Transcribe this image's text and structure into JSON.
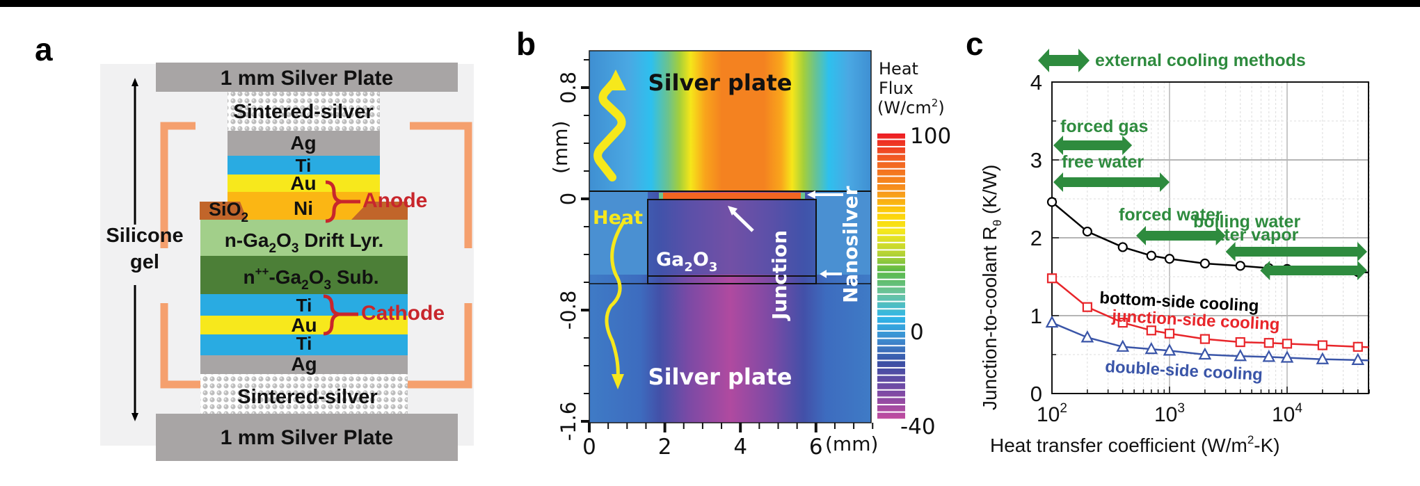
{
  "panels": {
    "a": {
      "label": "a",
      "layers": {
        "top_plate": "1 mm Silver Plate",
        "top_sinter": "Sintered-silver",
        "ag_top": "Ag",
        "ti_top": "Ti",
        "au_top": "Au",
        "ni": "Ni",
        "sio2": "SiO",
        "sio2_sub": "2",
        "drift_pre": "n-Ga",
        "drift_sub1": "2",
        "drift_mid": "O",
        "drift_sub2": "3",
        "drift_post": " Drift Lyr.",
        "sub_pre": "n",
        "sub_sup": "++",
        "sub_mid": "-Ga",
        "sub_sub1": "2",
        "sub_mid2": "O",
        "sub_sub2": "3",
        "sub_post": " Sub.",
        "ti_bot1": "Ti",
        "au_bot": "Au",
        "ti_bot2": "Ti",
        "ag_bot": "Ag",
        "bot_sinter": "Sintered-silver",
        "bot_plate": "1 mm Silver Plate"
      },
      "anode_label": "Anode",
      "cathode_label": "Cathode",
      "silicone_label_1": "Silicone",
      "silicone_label_2": "gel",
      "colors": {
        "silver": "#a8a5a5",
        "ti": "#29abe2",
        "au": "#f7e81c",
        "ni": "#fbb614",
        "sio2": "#c1652a",
        "drift": "#a2cf8a",
        "substrate": "#4c7f37",
        "bracket": "#f5a06e",
        "electrode_label": "#c8262c",
        "gel_bg": "#f1f1f2"
      }
    },
    "b": {
      "label": "b",
      "y_axis_label": "(mm)",
      "y_ticks": [
        "0.8",
        "0",
        "-0.8",
        "-1.6"
      ],
      "x_ticks": [
        "0",
        "2",
        "4",
        "6"
      ],
      "x_unit": "(mm)",
      "top_region_label": "Silver plate",
      "bottom_region_label": "Silver plate",
      "heat_label": "Heat",
      "ga2o3_pre": "Ga",
      "ga2o3_sub1": "2",
      "ga2o3_mid": "O",
      "ga2o3_sub2": "3",
      "junction_label": "Junction",
      "nanosilver_label": "Nanosilver",
      "colorbar": {
        "title_1": "Heat",
        "title_2": "Flux",
        "title_3": "(W/cm",
        "title_sup": "2",
        "title_4": ")",
        "max_label": "100",
        "zero_label": "0",
        "min_label": "-40",
        "min": -40,
        "max": 100
      }
    },
    "c": {
      "label": "c",
      "legend_header": "external cooling methods",
      "cooling_methods": [
        {
          "label": "forced gas",
          "range": [
            100,
            480
          ]
        },
        {
          "label": "free water",
          "range": [
            100,
            1000
          ]
        },
        {
          "label": "forced water",
          "range": [
            520,
            3000
          ]
        },
        {
          "label": "boiling water",
          "range": [
            3000,
            50000
          ]
        },
        {
          "label": "water vapor",
          "range": [
            5900,
            50000
          ]
        }
      ],
      "series_labels": {
        "bottom": "bottom-side cooling",
        "junction": "junction-side cooling",
        "double": "double-side cooling"
      },
      "y_label_main": "Junction-to-coolant R",
      "y_label_sub": "θ",
      "y_label_unit": " (K/W)",
      "x_label_main": "Heat transfer coefficient (W/m",
      "x_label_sup": "2",
      "x_label_end": "-K)",
      "y_ticks": [
        "0",
        "1",
        "2",
        "3",
        "4"
      ],
      "x_ticks": [
        {
          "base": "10",
          "exp": "2"
        },
        {
          "base": "10",
          "exp": "3"
        },
        {
          "base": "10",
          "exp": "4"
        }
      ],
      "colors": {
        "green": "#2e8b3e",
        "bottom": "#000000",
        "junction": "#e8252a",
        "double": "#3a55a8"
      }
    }
  },
  "chart_data": [
    {
      "type": "heatmap",
      "title": "Heat Flux (W/cm2)",
      "xlabel": "(mm)",
      "ylabel": "(mm)",
      "xlim": [
        0,
        7.5
      ],
      "ylim": [
        -1.6,
        1.07
      ],
      "x_ticks": [
        0,
        2,
        4,
        6
      ],
      "y_ticks": [
        0.8,
        0,
        -0.8,
        -1.6
      ],
      "colorbar_range": [
        -40,
        100
      ],
      "colorbar_ticks": [
        100,
        0,
        -40
      ],
      "annotations": [
        "Silver plate",
        "Heat",
        "Ga2O3",
        "Junction",
        "Nanosilver",
        "Silver plate"
      ]
    },
    {
      "type": "line",
      "title": "",
      "xlabel": "Heat transfer coefficient (W/m2-K)",
      "ylabel": "Junction-to-coolant Rθ (K/W)",
      "xscale": "log",
      "xlim": [
        100,
        50000
      ],
      "ylim": [
        0,
        4
      ],
      "grid": true,
      "x": [
        100,
        200,
        400,
        700,
        1000,
        2000,
        4000,
        7000,
        10000,
        20000,
        40000
      ],
      "series": [
        {
          "name": "bottom-side cooling",
          "marker": "circle",
          "values": [
            2.46,
            2.08,
            1.88,
            1.77,
            1.73,
            1.67,
            1.64,
            1.61,
            1.6,
            1.58,
            1.56
          ]
        },
        {
          "name": "junction-side cooling",
          "marker": "square",
          "values": [
            1.48,
            1.11,
            0.91,
            0.81,
            0.77,
            0.7,
            0.66,
            0.65,
            0.64,
            0.62,
            0.6
          ]
        },
        {
          "name": "double-side cooling",
          "marker": "triangle",
          "values": [
            0.91,
            0.72,
            0.6,
            0.57,
            0.55,
            0.5,
            0.48,
            0.47,
            0.46,
            0.44,
            0.43
          ]
        }
      ],
      "annotations": [
        "external cooling methods",
        "forced gas",
        "free water",
        "forced water",
        "boiling water",
        "water vapor"
      ]
    }
  ]
}
